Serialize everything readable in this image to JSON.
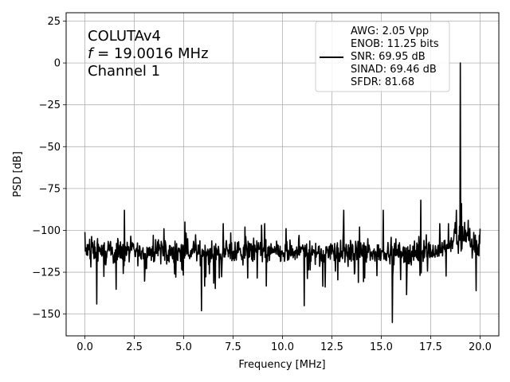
{
  "chart_data": {
    "type": "line",
    "xlabel": "Frequency [MHz]",
    "ylabel": "PSD [dB]",
    "xlim": [
      -0.95,
      20.95
    ],
    "ylim": [
      -163,
      30
    ],
    "xticks": [
      0.0,
      2.5,
      5.0,
      7.5,
      10.0,
      12.5,
      15.0,
      17.5,
      20.0
    ],
    "xtick_labels": [
      "0.0",
      "2.5",
      "5.0",
      "7.5",
      "10.0",
      "12.5",
      "15.0",
      "17.5",
      "20.0"
    ],
    "yticks": [
      25,
      0,
      -25,
      -50,
      -75,
      -100,
      -125,
      -150
    ],
    "ytick_labels": [
      "25",
      "0",
      "−25",
      "−50",
      "−75",
      "−100",
      "−125",
      "−150"
    ],
    "grid": true,
    "annotation": {
      "line1": "COLUTAv4",
      "line2_var": "f",
      "line2_rest": " = 19.0016 MHz",
      "line3": "Channel 1"
    },
    "legend": {
      "placement": "top-right",
      "entries": [
        "AWG: 2.05 Vpp",
        "ENOB: 11.25 bits",
        "SNR: 69.95 dB",
        "SINAD: 69.46 dB",
        "SFDR: 81.68"
      ]
    },
    "series": [
      {
        "color": "#000000",
        "noise_floor": -113,
        "x": [
          0.0,
          0.5,
          1.0,
          1.5,
          2.0,
          2.5,
          3.0,
          3.5,
          4.0,
          4.5,
          5.0,
          5.5,
          6.0,
          6.5,
          7.0,
          7.5,
          8.0,
          8.5,
          9.0,
          9.5,
          10.0,
          10.5,
          11.0,
          11.5,
          12.0,
          12.5,
          13.0,
          13.5,
          14.0,
          14.5,
          15.0,
          15.5,
          16.0,
          16.5,
          17.0,
          17.5,
          18.0,
          18.5,
          18.8,
          19.0,
          19.2,
          19.5,
          20.0
        ],
        "y": [
          -113,
          -112,
          -114,
          -113,
          -112,
          -113,
          -114,
          -112,
          -113,
          -114,
          -113,
          -112,
          -113,
          -114,
          -113,
          -112,
          -114,
          -113,
          -112,
          -113,
          -114,
          -113,
          -112,
          -113,
          -114,
          -112,
          -113,
          -113,
          -112,
          -114,
          -113,
          -112,
          -113,
          -114,
          -112,
          -113,
          -112,
          -110,
          -105,
          0,
          -105,
          -110,
          -112
        ],
        "spurs": [
          {
            "x": 0.0,
            "y": -101
          },
          {
            "x": 0.6,
            "y": -144
          },
          {
            "x": 2.0,
            "y": -88
          },
          {
            "x": 4.0,
            "y": -99
          },
          {
            "x": 5.05,
            "y": -95
          },
          {
            "x": 5.9,
            "y": -148
          },
          {
            "x": 7.0,
            "y": -96
          },
          {
            "x": 8.1,
            "y": -98
          },
          {
            "x": 9.1,
            "y": -96
          },
          {
            "x": 11.1,
            "y": -145
          },
          {
            "x": 13.1,
            "y": -88
          },
          {
            "x": 13.9,
            "y": -98
          },
          {
            "x": 15.1,
            "y": -88
          },
          {
            "x": 15.55,
            "y": -155
          },
          {
            "x": 17.0,
            "y": -82
          },
          {
            "x": 17.95,
            "y": -96
          },
          {
            "x": 18.8,
            "y": -88
          },
          {
            "x": 19.0,
            "y": 0
          },
          {
            "x": 19.05,
            "y": -84
          },
          {
            "x": 19.4,
            "y": -94
          },
          {
            "x": 19.8,
            "y": -136
          },
          {
            "x": 20.0,
            "y": -99
          }
        ]
      }
    ]
  }
}
